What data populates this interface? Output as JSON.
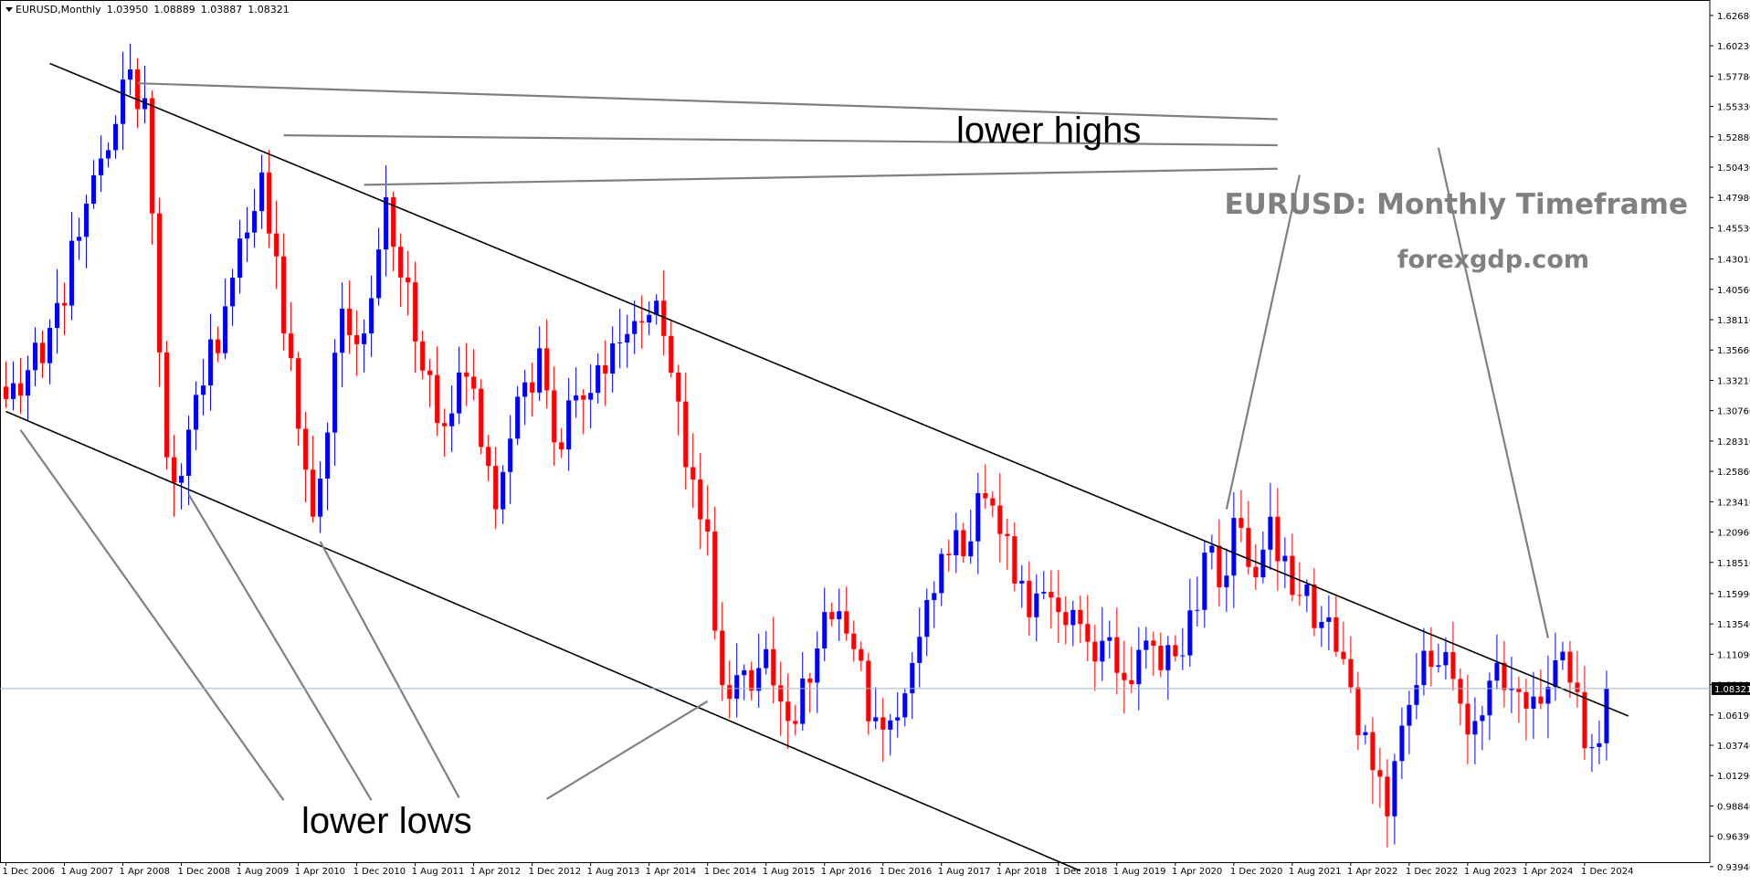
{
  "header": {
    "symbol": "EURUSD,Monthly",
    "open": "1.03950",
    "high": "1.08889",
    "low": "1.03887",
    "close": "1.08321"
  },
  "watermark": {
    "line1": "EURUSD: Monthly Timeframe",
    "line2": "forexgdp.com"
  },
  "annotations": {
    "upper": "lower highs",
    "lower": "lower lows"
  },
  "colors": {
    "bull": "#0000ff",
    "bear": "#ff0000",
    "trendline": "#000000",
    "pointer": "#808080",
    "price_line": "#a0b8c8",
    "price_tag_bg": "#000000"
  },
  "chart_data": {
    "type": "candlestick",
    "timeframe": "Monthly",
    "ylim": [
      0.943,
      1.6378
    ],
    "xlim": [
      "2006-12",
      "2025-05"
    ],
    "y_ticks": [
      "1.62680",
      "1.60230",
      "1.57780",
      "1.55330",
      "1.52880",
      "1.50430",
      "1.47980",
      "1.45530",
      "1.43010",
      "1.40560",
      "1.38110",
      "1.35660",
      "1.33210",
      "1.30760",
      "1.28310",
      "1.25860",
      "1.23410",
      "1.20960",
      "1.18510",
      "1.15990",
      "1.13540",
      "1.11090",
      "1.08640",
      "1.06190",
      "1.03740",
      "1.01290",
      "0.98840",
      "0.96390",
      "0.93940"
    ],
    "x_ticks": [
      "1 Dec 2006",
      "1 Aug 2007",
      "1 Apr 2008",
      "1 Dec 2008",
      "1 Aug 2009",
      "1 Apr 2010",
      "1 Dec 2010",
      "1 Aug 2011",
      "1 Apr 2012",
      "1 Dec 2012",
      "1 Aug 2013",
      "1 Apr 2014",
      "1 Dec 2014",
      "1 Aug 2015",
      "1 Apr 2016",
      "1 Dec 2016",
      "1 Aug 2017",
      "1 Apr 2018",
      "1 Dec 2018",
      "1 Aug 2019",
      "1 Apr 2020",
      "1 Dec 2020",
      "1 Aug 2021",
      "1 Apr 2022",
      "1 Dec 2022",
      "1 Aug 2023",
      "1 Apr 2024",
      "1 Dec 2024"
    ],
    "current_price": "1.08321",
    "current_price_value": 1.08321,
    "anchor_points": [
      [
        "2006-12",
        1.317
      ],
      [
        "2007-05",
        1.346
      ],
      [
        "2007-10",
        1.448
      ],
      [
        "2008-02",
        1.518
      ],
      [
        "2008-04",
        1.575
      ],
      [
        "2008-07",
        1.56
      ],
      [
        "2008-10",
        1.27
      ],
      [
        "2008-12",
        1.255
      ],
      [
        "2009-03",
        1.328
      ],
      [
        "2009-07",
        1.415
      ],
      [
        "2009-11",
        1.5
      ],
      [
        "2010-02",
        1.37
      ],
      [
        "2010-05",
        1.26
      ],
      [
        "2010-06",
        1.222
      ],
      [
        "2010-08",
        1.29
      ],
      [
        "2010-10",
        1.39
      ],
      [
        "2011-01",
        1.37
      ],
      [
        "2011-04",
        1.48
      ],
      [
        "2011-05",
        1.44
      ],
      [
        "2011-09",
        1.34
      ],
      [
        "2011-12",
        1.295
      ],
      [
        "2012-03",
        1.335
      ],
      [
        "2012-06",
        1.263
      ],
      [
        "2012-07",
        1.228
      ],
      [
        "2012-09",
        1.285
      ],
      [
        "2013-01",
        1.358
      ],
      [
        "2013-03",
        1.282
      ],
      [
        "2013-06",
        1.32
      ],
      [
        "2013-08",
        1.322
      ],
      [
        "2013-11",
        1.362
      ],
      [
        "2014-02",
        1.38
      ],
      [
        "2014-04",
        1.385
      ],
      [
        "2014-06",
        1.368
      ],
      [
        "2014-08",
        1.315
      ],
      [
        "2014-10",
        1.252
      ],
      [
        "2014-12",
        1.21
      ],
      [
        "2015-01",
        1.13
      ],
      [
        "2015-03",
        1.075
      ],
      [
        "2015-05",
        1.098
      ],
      [
        "2015-08",
        1.115
      ],
      [
        "2015-11",
        1.057
      ],
      [
        "2016-02",
        1.088
      ],
      [
        "2016-04",
        1.145
      ],
      [
        "2016-08",
        1.115
      ],
      [
        "2016-11",
        1.06
      ],
      [
        "2016-12",
        1.05
      ],
      [
        "2017-02",
        1.06
      ],
      [
        "2017-05",
        1.125
      ],
      [
        "2017-08",
        1.192
      ],
      [
        "2017-11",
        1.19
      ],
      [
        "2018-01",
        1.241
      ],
      [
        "2018-03",
        1.231
      ],
      [
        "2018-04",
        1.208
      ],
      [
        "2018-06",
        1.168
      ],
      [
        "2018-09",
        1.16
      ],
      [
        "2018-12",
        1.145
      ],
      [
        "2019-04",
        1.121
      ],
      [
        "2019-09",
        1.09
      ],
      [
        "2019-12",
        1.122
      ],
      [
        "2020-02",
        1.098
      ],
      [
        "2020-05",
        1.11
      ],
      [
        "2020-08",
        1.193
      ],
      [
        "2020-10",
        1.165
      ],
      [
        "2020-12",
        1.221
      ],
      [
        "2021-01",
        1.213
      ],
      [
        "2021-03",
        1.173
      ],
      [
        "2021-05",
        1.222
      ],
      [
        "2021-06",
        1.186
      ],
      [
        "2021-09",
        1.158
      ],
      [
        "2021-12",
        1.137
      ],
      [
        "2022-03",
        1.107
      ],
      [
        "2022-06",
        1.048
      ],
      [
        "2022-09",
        0.98
      ],
      [
        "2022-12",
        1.07
      ],
      [
        "2023-01",
        1.086
      ],
      [
        "2023-04",
        1.102
      ],
      [
        "2023-06",
        1.091
      ],
      [
        "2023-09",
        1.057
      ],
      [
        "2023-12",
        1.104
      ],
      [
        "2024-01",
        1.082
      ],
      [
        "2024-04",
        1.067
      ],
      [
        "2024-06",
        1.071
      ],
      [
        "2024-09",
        1.113
      ],
      [
        "2024-10",
        1.088
      ],
      [
        "2024-12",
        1.035
      ],
      [
        "2025-01",
        1.036
      ],
      [
        "2025-02",
        1.039
      ],
      [
        "2025-03",
        1.08321
      ]
    ],
    "trendlines": [
      {
        "name": "upper channel",
        "from": [
          "2007-06",
          1.588
        ],
        "to": [
          "2025-06",
          1.061
        ]
      },
      {
        "name": "lower channel",
        "from": [
          "2006-12",
          1.307
        ],
        "to": [
          "2019-03",
          0.936
        ]
      }
    ],
    "pointer_lines": {
      "lower_highs": [
        {
          "from": [
            "2008-06",
            1.572
          ],
          "to": [
            "2021-06",
            1.543
          ]
        },
        {
          "from": [
            "2010-02",
            1.53
          ],
          "to": [
            "2021-06",
            1.522
          ]
        },
        {
          "from": [
            "2011-01",
            1.49
          ],
          "to": [
            "2021-06",
            1.503
          ]
        },
        {
          "from": [
            "2021-09",
            1.498
          ],
          "to": [
            "2020-11",
            1.228
          ]
        },
        {
          "from": [
            "2023-04",
            1.52
          ],
          "to": [
            "2024-07",
            1.124
          ]
        }
      ],
      "lower_lows": [
        {
          "from": [
            "2007-02",
            1.292
          ],
          "to": [
            "2010-02",
            0.993
          ]
        },
        {
          "from": [
            "2009-01",
            1.24
          ],
          "to": [
            "2011-02",
            0.993
          ]
        },
        {
          "from": [
            "2010-07",
            1.202
          ],
          "to": [
            "2012-02",
            0.995
          ]
        },
        {
          "from": [
            "2013-02",
            0.994
          ],
          "to": [
            "2014-12",
            1.073
          ]
        }
      ]
    }
  }
}
